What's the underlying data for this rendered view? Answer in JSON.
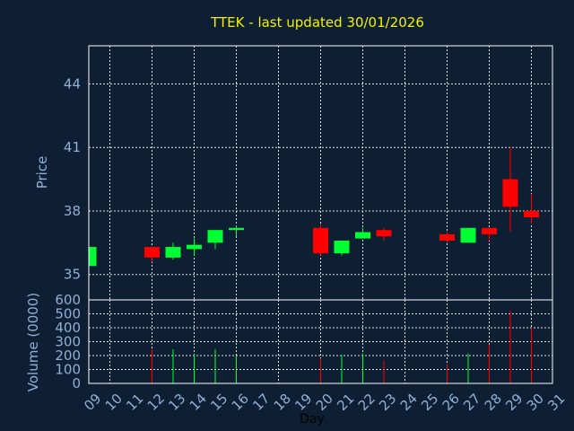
{
  "chart_data": {
    "type": "candlestick",
    "title": "TTEK - last updated 30/01/2026",
    "xlabel": "Day",
    "x_ticks": [
      "09",
      "10",
      "11",
      "12",
      "13",
      "14",
      "15",
      "16",
      "17",
      "18",
      "19",
      "20",
      "21",
      "22",
      "23",
      "24",
      "25",
      "26",
      "27",
      "28",
      "29",
      "30",
      "31"
    ],
    "price_panel": {
      "ylabel": "Price",
      "ylim": [
        33.8,
        45.8
      ],
      "y_ticks": [
        35,
        38,
        41,
        44
      ],
      "grid": true
    },
    "volume_panel": {
      "ylabel": "Volume (0000)",
      "ylim": [
        0,
        600
      ],
      "y_ticks": [
        0,
        100,
        200,
        300,
        400,
        500,
        600
      ],
      "grid": true
    },
    "up_color": "#00ff33",
    "down_color": "#ff0000",
    "candles": [
      {
        "day": 9,
        "open": 35.4,
        "close": 36.3,
        "high": 36.3,
        "low": 35.4,
        "volume": 0
      },
      {
        "day": 12,
        "open": 36.3,
        "close": 35.8,
        "high": 36.3,
        "low": 35.6,
        "volume": 245
      },
      {
        "day": 13,
        "open": 35.8,
        "close": 36.3,
        "high": 36.5,
        "low": 35.7,
        "volume": 245
      },
      {
        "day": 14,
        "open": 36.2,
        "close": 36.4,
        "high": 36.7,
        "low": 35.9,
        "volume": 210
      },
      {
        "day": 15,
        "open": 36.5,
        "close": 37.1,
        "high": 37.1,
        "low": 36.2,
        "volume": 245
      },
      {
        "day": 16,
        "open": 37.1,
        "close": 37.2,
        "high": 37.3,
        "low": 36.8,
        "volume": 200
      },
      {
        "day": 20,
        "open": 37.2,
        "close": 36.0,
        "high": 37.4,
        "low": 35.9,
        "volume": 180
      },
      {
        "day": 21,
        "open": 36.0,
        "close": 36.6,
        "high": 36.6,
        "low": 35.9,
        "volume": 205
      },
      {
        "day": 22,
        "open": 36.7,
        "close": 37.0,
        "high": 37.2,
        "low": 36.7,
        "volume": 215
      },
      {
        "day": 23,
        "open": 37.1,
        "close": 36.8,
        "high": 37.2,
        "low": 36.6,
        "volume": 165
      },
      {
        "day": 26,
        "open": 36.9,
        "close": 36.6,
        "high": 37.0,
        "low": 36.5,
        "volume": 140
      },
      {
        "day": 27,
        "open": 36.5,
        "close": 37.2,
        "high": 37.2,
        "low": 36.5,
        "volume": 215
      },
      {
        "day": 28,
        "open": 37.2,
        "close": 36.9,
        "high": 37.2,
        "low": 36.6,
        "volume": 280
      },
      {
        "day": 29,
        "open": 39.5,
        "close": 38.2,
        "high": 41.0,
        "low": 37.0,
        "volume": 520
      },
      {
        "day": 30,
        "open": 38.0,
        "close": 37.7,
        "high": 38.8,
        "low": 37.4,
        "volume": 400
      }
    ]
  }
}
